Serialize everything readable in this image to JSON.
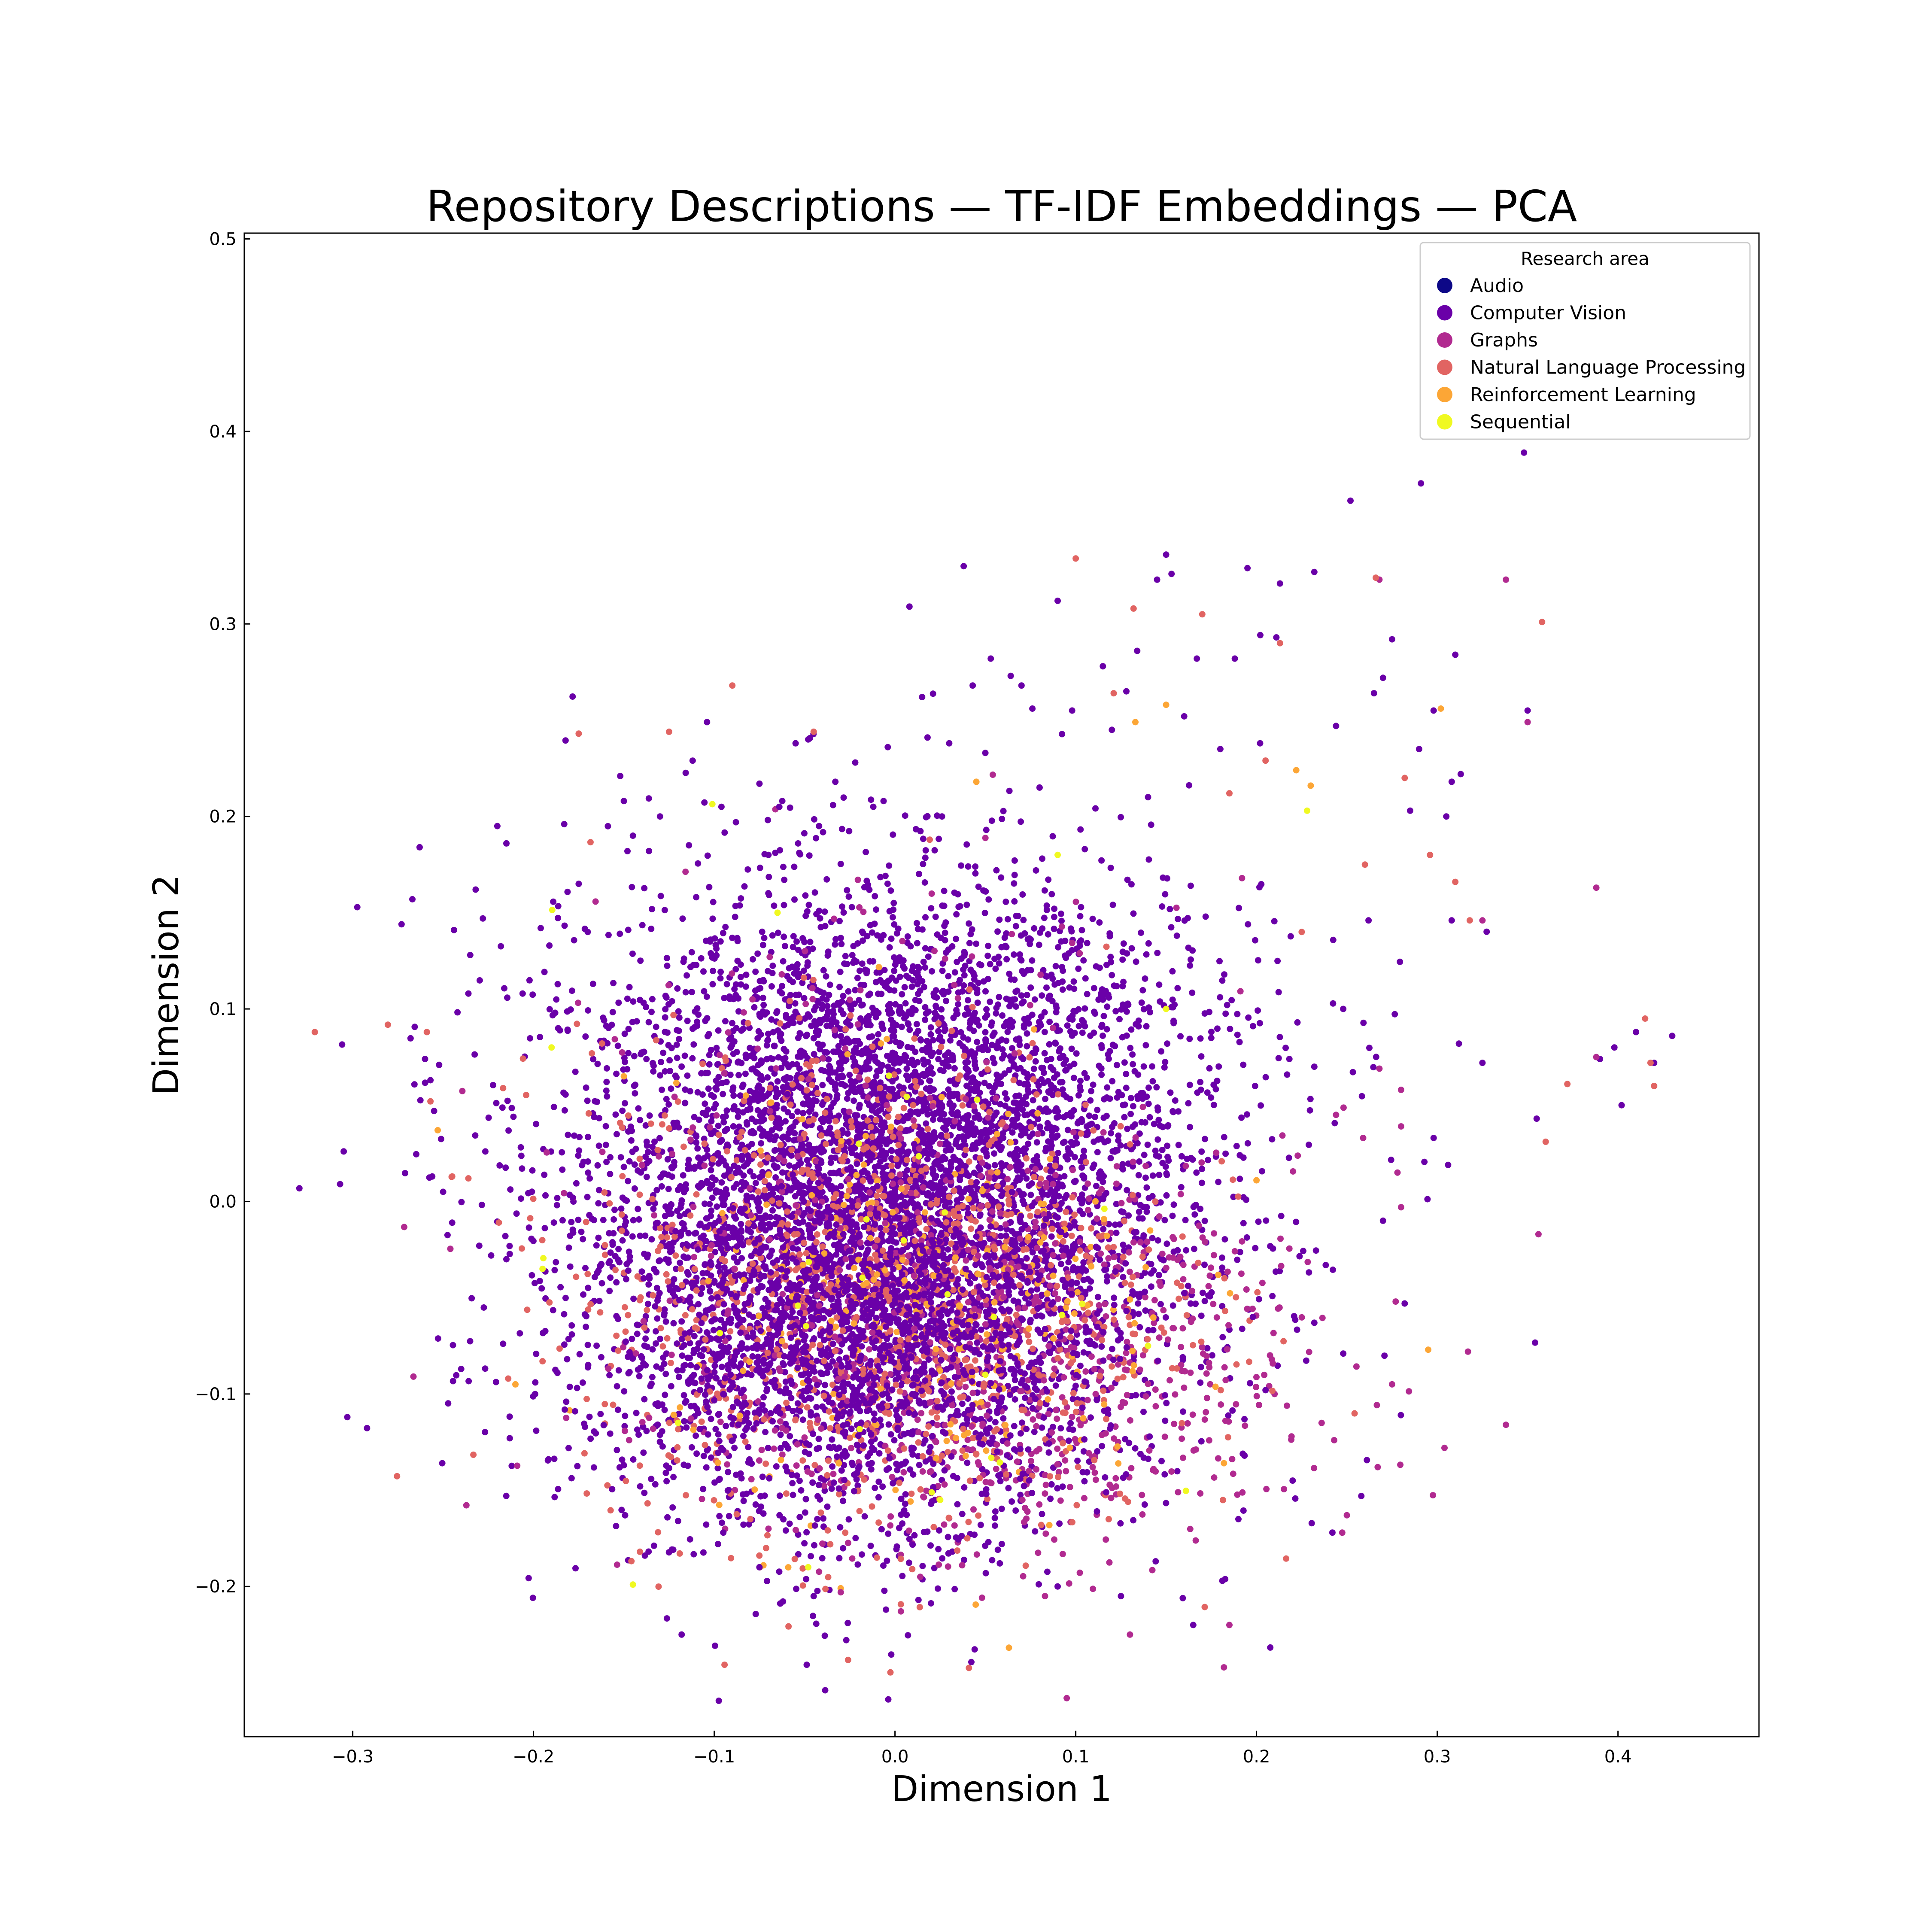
{
  "chart_data": {
    "type": "scatter",
    "title": "Repository Descriptions — TF-IDF Embeddings — PCA",
    "xlabel": "Dimension 1",
    "ylabel": "Dimension 2",
    "xlim": [
      -0.36,
      0.478
    ],
    "ylim": [
      -0.278,
      0.503
    ],
    "xticks": [
      -0.3,
      -0.2,
      -0.1,
      0.0,
      0.1,
      0.2,
      0.3,
      0.4
    ],
    "xtick_labels": [
      "−0.3",
      "−0.2",
      "−0.1",
      "0.0",
      "0.1",
      "0.2",
      "0.3",
      "0.4"
    ],
    "yticks": [
      -0.2,
      -0.1,
      0.0,
      0.1,
      0.2,
      0.3,
      0.4,
      0.5
    ],
    "ytick_labels": [
      "−0.2",
      "−0.1",
      "0.0",
      "0.1",
      "0.2",
      "0.3",
      "0.4",
      "0.5"
    ],
    "grid": false,
    "legend": {
      "title": "Research area",
      "position": "top-right",
      "entries": [
        {
          "name": "Audio",
          "color": "#0d0887"
        },
        {
          "name": "Computer Vision",
          "color": "#6a00a8"
        },
        {
          "name": "Graphs",
          "color": "#b12a90"
        },
        {
          "name": "Natural Language Processing",
          "color": "#e16462"
        },
        {
          "name": "Reinforcement Learning",
          "color": "#fca636"
        },
        {
          "name": "Sequential",
          "color": "#f0f921"
        }
      ]
    },
    "series": [
      {
        "name": "Computer Vision",
        "color": "#6a00a8",
        "points": [
          [
            -0.305,
            0.026
          ],
          [
            -0.307,
            0.009
          ],
          [
            -0.303,
            -0.112
          ],
          [
            -0.273,
            0.144
          ],
          [
            -0.267,
            0.157
          ],
          [
            -0.263,
            0.184
          ],
          [
            -0.26,
            0.074
          ],
          [
            -0.257,
            0.063
          ],
          [
            -0.244,
            0.141
          ],
          [
            -0.24,
            -0.087
          ],
          [
            -0.236,
            0.108
          ],
          [
            -0.235,
            0.128
          ],
          [
            -0.232,
            0.162
          ],
          [
            -0.228,
            0.147
          ],
          [
            -0.22,
            0.195
          ],
          [
            -0.215,
            0.186
          ],
          [
            -0.206,
            0.108
          ],
          [
            -0.196,
            0.142
          ],
          [
            -0.188,
            0.098
          ],
          [
            -0.183,
            0.196
          ],
          [
            -0.175,
            0.165
          ],
          [
            -0.17,
            0.14
          ],
          [
            -0.152,
            0.221
          ],
          [
            -0.15,
            0.208
          ],
          [
            -0.148,
            0.182
          ],
          [
            -0.145,
            0.19
          ],
          [
            -0.13,
            0.2
          ],
          [
            -0.114,
            0.185
          ],
          [
            -0.104,
            0.249
          ],
          [
            -0.096,
            0.205
          ],
          [
            -0.088,
            0.197
          ],
          [
            -0.075,
            0.217
          ],
          [
            -0.07,
            0.18
          ],
          [
            -0.064,
            0.205
          ],
          [
            -0.055,
            0.238
          ],
          [
            -0.048,
            0.24
          ],
          [
            -0.042,
            0.195
          ],
          [
            -0.033,
            0.218
          ],
          [
            -0.022,
            0.228
          ],
          [
            -0.012,
            0.205
          ],
          [
            -0.004,
            0.236
          ],
          [
            0.008,
            0.309
          ],
          [
            0.015,
            0.262
          ],
          [
            0.018,
            0.241
          ],
          [
            0.026,
            0.2
          ],
          [
            0.03,
            0.238
          ],
          [
            0.038,
            0.33
          ],
          [
            0.043,
            0.268
          ],
          [
            0.05,
            0.233
          ],
          [
            0.053,
            0.282
          ],
          [
            0.064,
            0.273
          ],
          [
            0.07,
            0.268
          ],
          [
            0.076,
            0.256
          ],
          [
            0.08,
            0.215
          ],
          [
            0.09,
            0.312
          ],
          [
            0.098,
            0.255
          ],
          [
            0.105,
            0.183
          ],
          [
            0.115,
            0.278
          ],
          [
            0.12,
            0.245
          ],
          [
            0.128,
            0.265
          ],
          [
            0.134,
            0.286
          ],
          [
            0.14,
            0.21
          ],
          [
            0.145,
            0.323
          ],
          [
            0.15,
            0.336
          ],
          [
            0.153,
            0.326
          ],
          [
            0.16,
            0.252
          ],
          [
            0.167,
            0.282
          ],
          [
            0.18,
            0.235
          ],
          [
            0.188,
            0.282
          ],
          [
            0.195,
            0.329
          ],
          [
            0.202,
            0.238
          ],
          [
            0.211,
            0.293
          ],
          [
            0.213,
            0.321
          ],
          [
            0.232,
            0.327
          ],
          [
            0.244,
            0.247
          ],
          [
            0.252,
            0.364
          ],
          [
            0.265,
            0.264
          ],
          [
            0.27,
            0.272
          ],
          [
            0.275,
            0.292
          ],
          [
            0.29,
            0.235
          ],
          [
            0.291,
            0.373
          ],
          [
            0.298,
            0.255
          ],
          [
            0.308,
            0.218
          ],
          [
            0.313,
            0.222
          ],
          [
            0.305,
            0.2
          ],
          [
            0.308,
            0.146
          ],
          [
            0.31,
            0.284
          ],
          [
            0.325,
            0.072
          ],
          [
            0.312,
            0.082
          ],
          [
            0.298,
            0.033
          ],
          [
            0.306,
            0.019
          ],
          [
            0.35,
            0.255
          ],
          [
            0.348,
            0.389
          ],
          [
            0.355,
            0.043
          ],
          [
            0.39,
            0.074
          ],
          [
            0.398,
            0.08
          ],
          [
            0.402,
            0.05
          ],
          [
            0.41,
            0.088
          ],
          [
            0.42,
            0.072
          ],
          [
            0.43,
            0.086
          ],
          [
            0.232,
            -0.063
          ],
          [
            0.258,
            -0.153
          ],
          [
            0.242,
            -0.172
          ],
          [
            0.282,
            -0.053
          ],
          [
            0.248,
            -0.079
          ],
          [
            0.285,
            0.203
          ],
          [
            0.262,
            0.146
          ],
          [
            0.248,
            0.1
          ],
          [
            0.232,
            0.07
          ],
          [
            0.27,
            -0.01
          ],
          [
            0.22,
            -0.145
          ],
          [
            0.19,
            -0.165
          ],
          [
            0.205,
            -0.098
          ],
          [
            0.198,
            -0.06
          ],
          [
            0.165,
            -0.22
          ],
          [
            0.125,
            -0.205
          ],
          [
            0.09,
            -0.2
          ],
          [
            0.058,
            -0.188
          ],
          [
            0.013,
            -0.207
          ],
          [
            -0.005,
            -0.212
          ],
          [
            -0.045,
            -0.205
          ],
          [
            -0.075,
            -0.19
          ],
          [
            -0.095,
            -0.172
          ],
          [
            -0.12,
            -0.166
          ],
          [
            -0.15,
            -0.137
          ],
          [
            -0.177,
            -0.109
          ],
          [
            -0.199,
            -0.094
          ],
          [
            -0.215,
            -0.03
          ],
          [
            -0.23,
            -0.023
          ],
          [
            -0.245,
            -0.011
          ],
          [
            -0.25,
            0.005
          ],
          [
            -0.255,
            0.047
          ]
        ],
        "notes": "Dense core: roughly 6000 points centered near (0.0, -0.03), spread x -0.22..0.22, y -0.18..0.20"
      },
      {
        "name": "Graphs",
        "color": "#b12a90",
        "points": [
          [
            0.338,
            0.323
          ],
          [
            0.35,
            0.249
          ],
          [
            0.338,
            -0.116
          ],
          [
            0.388,
            0.163
          ],
          [
            0.388,
            0.075
          ],
          [
            0.356,
            -0.017
          ],
          [
            0.28,
            0.058
          ],
          [
            0.28,
            -0.003
          ],
          [
            0.28,
            0.039
          ],
          [
            0.275,
            -0.095
          ],
          [
            0.277,
            -0.052
          ],
          [
            0.268,
            0.069
          ],
          [
            0.259,
            0.033
          ],
          [
            0.243,
            -0.124
          ],
          [
            0.25,
            -0.163
          ],
          [
            0.182,
            -0.242
          ],
          [
            0.185,
            -0.22
          ],
          [
            0.13,
            -0.225
          ],
          [
            0.095,
            -0.258
          ],
          [
            0.083,
            -0.205
          ],
          [
            0.014,
            -0.195
          ],
          [
            -0.03,
            -0.203
          ],
          [
            -0.07,
            -0.17
          ],
          [
            0.325,
            0.146
          ],
          [
            0.268,
            0.323
          ],
          [
            0.317,
            -0.078
          ],
          [
            0.304,
            -0.128
          ],
          [
            0.278,
            0.015
          ],
          [
            0.244,
            0.045
          ]
        ],
        "notes": "Concentrated lower-right of core, y -0.20..0.05"
      },
      {
        "name": "Natural Language Processing",
        "color": "#e16462",
        "points": [
          [
            -0.321,
            0.088
          ],
          [
            -0.259,
            0.088
          ],
          [
            -0.257,
            0.052
          ],
          [
            -0.245,
            0.013
          ],
          [
            -0.236,
            0.012
          ],
          [
            -0.214,
            -0.092
          ],
          [
            -0.195,
            -0.083
          ],
          [
            -0.175,
            0.243
          ],
          [
            -0.125,
            0.244
          ],
          [
            -0.09,
            0.268
          ],
          [
            -0.045,
            0.244
          ],
          [
            0.1,
            0.334
          ],
          [
            0.121,
            0.264
          ],
          [
            0.132,
            0.308
          ],
          [
            0.17,
            0.305
          ],
          [
            0.213,
            0.29
          ],
          [
            0.266,
            0.324
          ],
          [
            0.282,
            0.22
          ],
          [
            0.358,
            0.301
          ],
          [
            0.36,
            0.031
          ],
          [
            0.372,
            0.061
          ],
          [
            0.415,
            0.095
          ],
          [
            0.418,
            0.072
          ],
          [
            0.42,
            0.06
          ],
          [
            0.296,
            0.18
          ],
          [
            0.318,
            0.146
          ],
          [
            0.31,
            0.166
          ],
          [
            0.26,
            0.175
          ],
          [
            0.225,
            0.14
          ],
          [
            0.205,
            0.229
          ],
          [
            0.185,
            0.212
          ],
          [
            -0.08,
            -0.165
          ],
          [
            -0.01,
            -0.185
          ],
          [
            0.04,
            -0.175
          ]
        ],
        "notes": "Spread throughout core, denser in lower-center near (0.0, -0.05)"
      },
      {
        "name": "Reinforcement Learning",
        "color": "#fca636",
        "points": [
          [
            0.133,
            0.249
          ],
          [
            0.222,
            0.224
          ],
          [
            0.302,
            0.256
          ],
          [
            0.295,
            -0.077
          ],
          [
            -0.21,
            -0.095
          ],
          [
            -0.253,
            0.037
          ],
          [
            0.045,
            0.218
          ],
          [
            0.15,
            0.258
          ],
          [
            -0.15,
            0.065
          ],
          [
            0.2,
            0.011
          ],
          [
            0.23,
            0.216
          ]
        ],
        "notes": "Sparse, concentrated in lower-center of core"
      },
      {
        "name": "Sequential",
        "color": "#f0f921",
        "points": [
          [
            -0.145,
            -0.199
          ],
          [
            0.228,
            0.203
          ],
          [
            -0.195,
            -0.035
          ],
          [
            -0.12,
            -0.115
          ],
          [
            -0.048,
            -0.19
          ],
          [
            0.025,
            -0.155
          ],
          [
            0.14,
            -0.075
          ],
          [
            0.09,
            0.18
          ],
          [
            -0.065,
            0.15
          ],
          [
            0.15,
            0.1
          ],
          [
            -0.19,
            0.08
          ],
          [
            0.05,
            -0.09
          ],
          [
            -0.02,
            0.03
          ]
        ],
        "notes": "Very sparse, scattered"
      },
      {
        "name": "Audio",
        "color": "#0d0887",
        "points": [],
        "notes": "No distinct points visible"
      }
    ],
    "annotations": []
  }
}
